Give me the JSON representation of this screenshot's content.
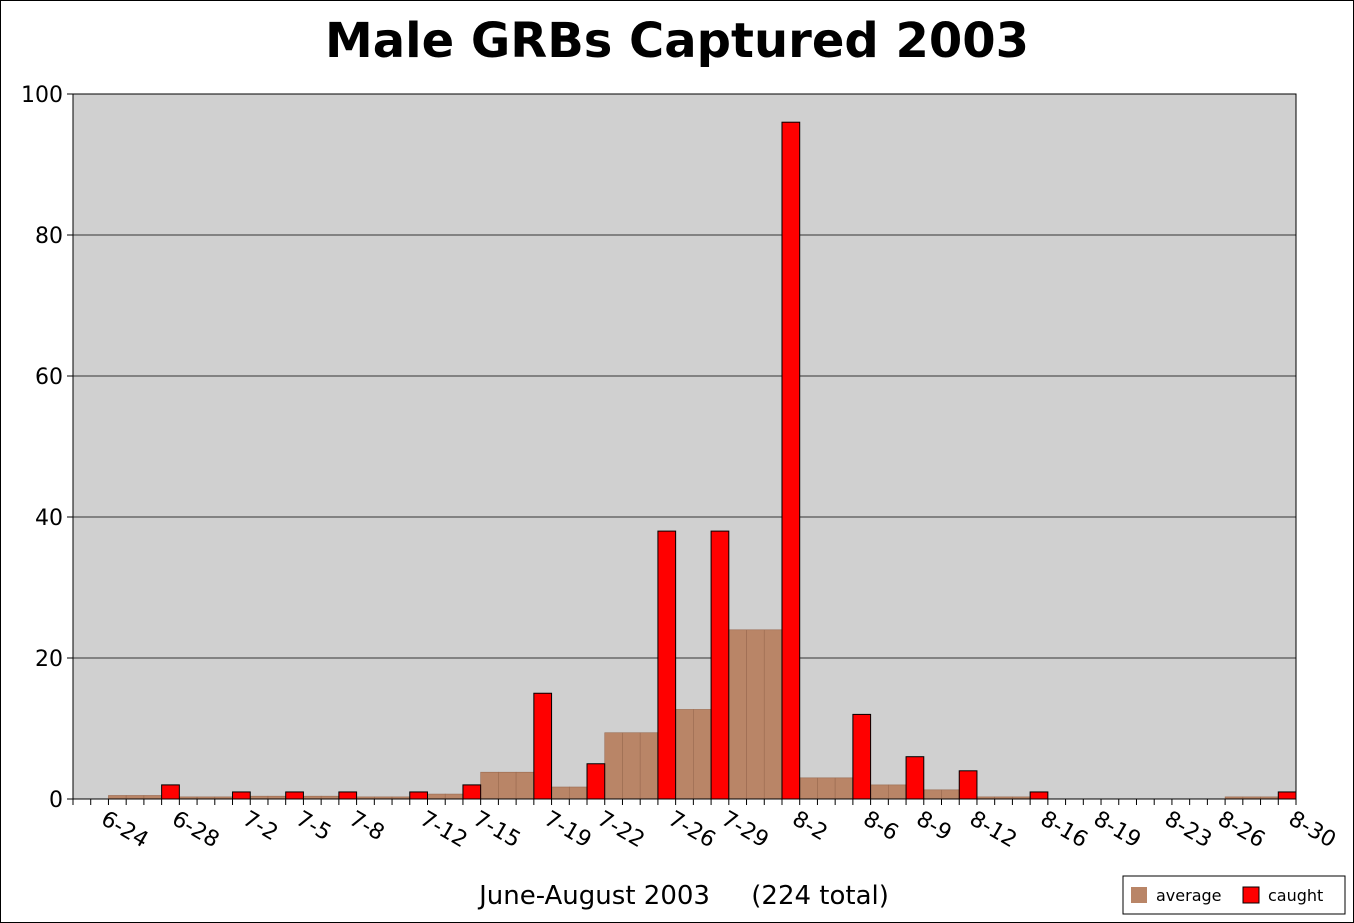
{
  "chart_data": {
    "type": "bar",
    "title": "Male GRBs Captured 2003",
    "x_label": "June-August 2003     (224 total)",
    "categories": [
      null,
      "6-24",
      null,
      null,
      null,
      "6-28",
      null,
      null,
      null,
      "7-2",
      null,
      null,
      "7-5",
      null,
      null,
      "7-8",
      null,
      null,
      null,
      "7-12",
      null,
      null,
      "7-15",
      null,
      null,
      null,
      "7-19",
      null,
      null,
      "7-22",
      null,
      null,
      null,
      "7-26",
      null,
      null,
      "7-29",
      null,
      null,
      null,
      "8-2",
      null,
      null,
      null,
      "8-6",
      null,
      null,
      "8-9",
      null,
      null,
      "8-12",
      null,
      null,
      null,
      "8-16",
      null,
      null,
      "8-19",
      null,
      null,
      null,
      "8-23",
      null,
      null,
      "8-26",
      null,
      null,
      null,
      "8-30"
    ],
    "series": [
      {
        "name": "average",
        "color": "#b98567",
        "values": [
          0,
          0,
          0.5,
          0.5,
          0.5,
          null,
          0.3,
          0.3,
          0.3,
          null,
          0.4,
          0.4,
          null,
          0.4,
          0.4,
          null,
          0.3,
          0.3,
          0.3,
          null,
          0.7,
          0.7,
          null,
          3.8,
          3.8,
          3.8,
          null,
          1.7,
          1.7,
          null,
          9.4,
          9.4,
          9.4,
          null,
          12.7,
          12.7,
          null,
          24,
          24,
          24,
          null,
          3,
          3,
          3,
          null,
          2,
          2,
          null,
          1.3,
          1.3,
          null,
          0.3,
          0.3,
          0.3,
          null,
          0,
          0,
          0,
          0,
          0,
          0,
          0,
          0,
          0,
          0,
          0.3,
          0.3,
          0.3,
          null
        ]
      },
      {
        "name": "caught",
        "color": "#ff0000",
        "values": [
          0,
          0,
          0,
          0,
          0,
          2,
          0,
          0,
          0,
          1,
          0,
          0,
          1,
          0,
          0,
          1,
          0,
          0,
          0,
          1,
          0,
          0,
          2,
          0,
          0,
          0,
          15,
          0,
          0,
          5,
          0,
          0,
          0,
          38,
          0,
          0,
          38,
          0,
          0,
          0,
          96,
          0,
          0,
          0,
          12,
          0,
          0,
          6,
          0,
          0,
          4,
          0,
          0,
          0,
          1,
          0,
          0,
          0,
          0,
          0,
          0,
          0,
          0,
          0,
          0,
          0,
          0,
          0,
          1
        ]
      }
    ],
    "ylim": [
      0,
      100
    ],
    "yticks": [
      0,
      20,
      40,
      60,
      80,
      100
    ],
    "grid": true,
    "legend": "bottom-right"
  }
}
